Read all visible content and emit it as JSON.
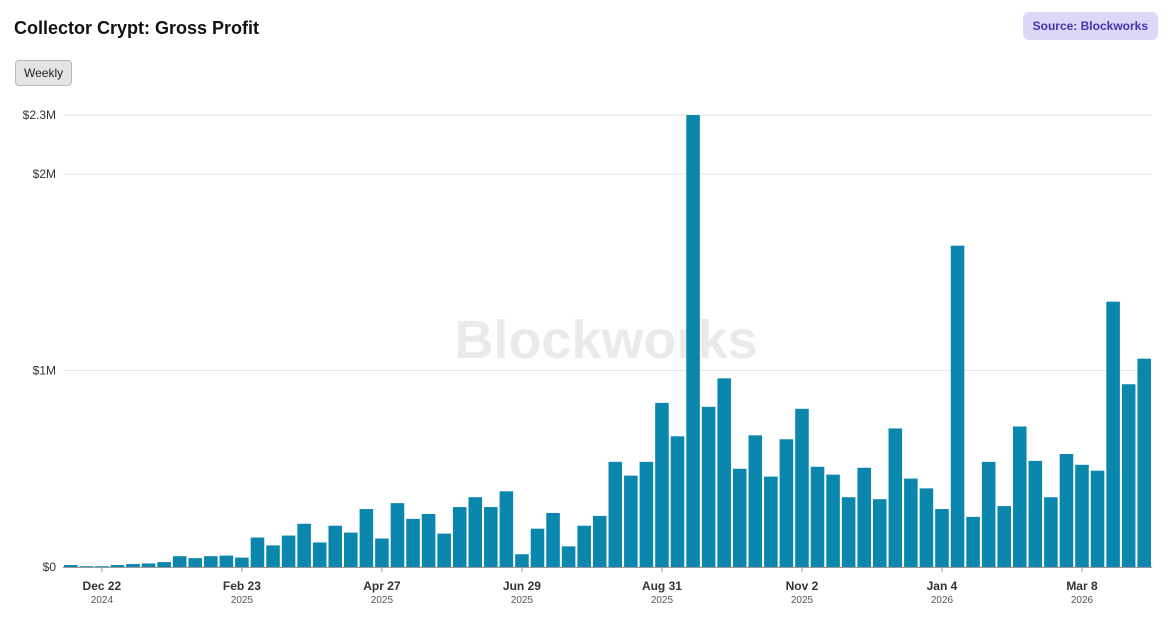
{
  "header": {
    "title": "Collector Crypt: Gross Profit",
    "source": "Source: Blockworks",
    "toggle_label": "Weekly"
  },
  "watermark": "Blockworks",
  "colors": {
    "bar": "#0b87ad",
    "grid": "#e6e6e6",
    "axis": "#999999"
  },
  "chart_data": {
    "type": "bar",
    "title": "Collector Crypt: Gross Profit",
    "xlabel": "",
    "ylabel": "",
    "ylim": [
      0,
      2300000
    ],
    "y_ticks": [
      {
        "value": 0,
        "label": "$0"
      },
      {
        "value": 1000000,
        "label": "$1M"
      },
      {
        "value": 2000000,
        "label": "$2M"
      },
      {
        "value": 2300000,
        "label": "$2.3M"
      }
    ],
    "x_ticks": [
      {
        "index": 2,
        "label": "Dec 22",
        "year": "2024"
      },
      {
        "index": 11,
        "label": "Feb 23",
        "year": "2025"
      },
      {
        "index": 20,
        "label": "Apr 27",
        "year": "2025"
      },
      {
        "index": 29,
        "label": "Jun 29",
        "year": "2025"
      },
      {
        "index": 38,
        "label": "Aug 31",
        "year": "2025"
      },
      {
        "index": 47,
        "label": "Nov 2",
        "year": "2025"
      },
      {
        "index": 56,
        "label": "Jan 4",
        "year": "2026"
      },
      {
        "index": 65,
        "label": "Mar 8",
        "year": "2026"
      }
    ],
    "series": [
      {
        "values": [
          10000,
          4000,
          4000,
          10000,
          15000,
          18000,
          25000,
          55000,
          45000,
          55000,
          58000,
          48000,
          150000,
          110000,
          160000,
          220000,
          125000,
          210000,
          175000,
          295000,
          145000,
          325000,
          245000,
          270000,
          170000,
          305000,
          355000,
          305000,
          385000,
          65000,
          195000,
          275000,
          105000,
          210000,
          260000,
          535000,
          465000,
          535000,
          835000,
          665000,
          2300000,
          815000,
          960000,
          500000,
          670000,
          460000,
          650000,
          805000,
          510000,
          470000,
          355000,
          505000,
          345000,
          705000,
          450000,
          400000,
          295000,
          1635000,
          255000,
          535000,
          310000,
          715000,
          540000,
          355000,
          575000,
          520000,
          490000,
          1350000,
          930000,
          1060000
        ]
      }
    ]
  }
}
